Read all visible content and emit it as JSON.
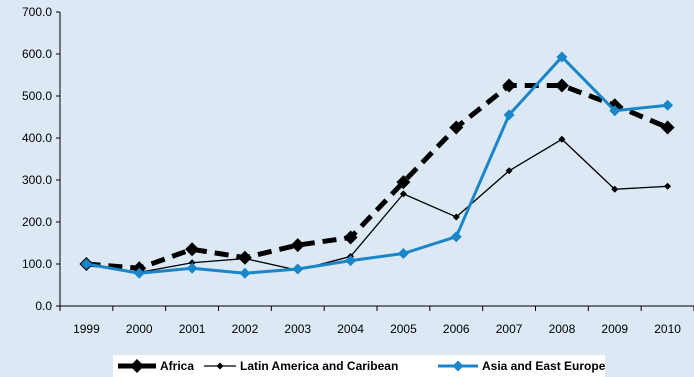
{
  "chart_data": {
    "type": "line",
    "title": "",
    "xlabel": "",
    "ylabel": "",
    "categories": [
      "1999",
      "2000",
      "2001",
      "2002",
      "2003",
      "2004",
      "2005",
      "2006",
      "2007",
      "2008",
      "2009",
      "2010"
    ],
    "ylim": [
      0,
      700
    ],
    "y_ticks": [
      "0.0",
      "100.0",
      "200.0",
      "300.0",
      "400.0",
      "500.0",
      "600.0",
      "700.0"
    ],
    "grid": false,
    "legend_position": "bottom",
    "series": [
      {
        "name": "Africa",
        "color": "#000000",
        "style": "dashed-thick-diamond",
        "values": [
          100,
          90,
          135,
          115,
          145,
          163,
          295,
          425,
          525,
          525,
          478,
          425
        ]
      },
      {
        "name": "Latin America and Caribean",
        "color": "#000000",
        "style": "thin-diamond",
        "values": [
          100,
          80,
          103,
          113,
          85,
          118,
          267,
          212,
          322,
          397,
          278,
          285
        ]
      },
      {
        "name": "Asia and East Europe",
        "color": "#1a85c8",
        "style": "blue-diamond",
        "values": [
          100,
          78,
          90,
          78,
          88,
          108,
          125,
          165,
          455,
          593,
          465,
          478
        ]
      }
    ]
  }
}
